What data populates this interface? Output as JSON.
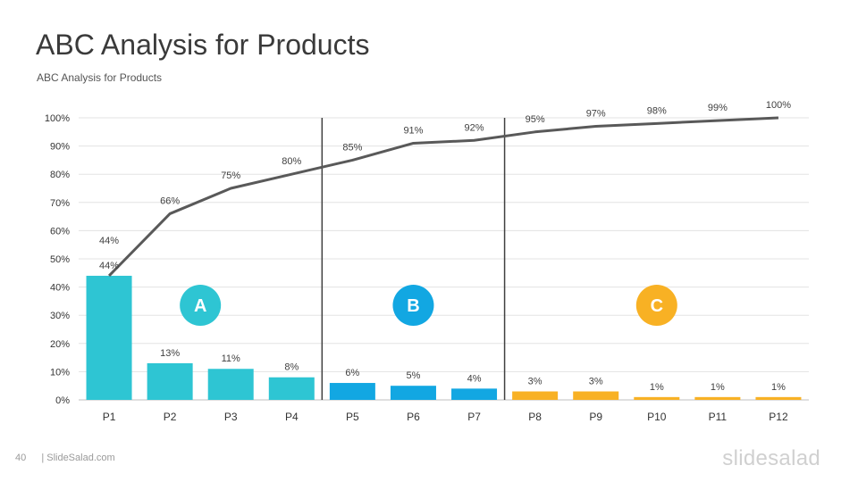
{
  "slide": {
    "title": "ABC Analysis for Products",
    "subtitle": "ABC Analysis for Products",
    "page_number": "40",
    "site": "| SlideSalad.com",
    "logo": "slidesalad"
  },
  "chart_data": {
    "type": "bar",
    "categories": [
      "P1",
      "P2",
      "P3",
      "P4",
      "P5",
      "P6",
      "P7",
      "P8",
      "P9",
      "P10",
      "P11",
      "P12"
    ],
    "series": [
      {
        "kind": "bar",
        "values": [
          44,
          13,
          11,
          8,
          6,
          5,
          4,
          3,
          3,
          1,
          1,
          1
        ],
        "labels": [
          "44%",
          "13%",
          "11%",
          "8%",
          "6%",
          "5%",
          "4%",
          "3%",
          "3%",
          "1%",
          "1%",
          "1%"
        ]
      },
      {
        "kind": "line",
        "values": [
          44,
          66,
          75,
          80,
          85,
          91,
          92,
          95,
          97,
          98,
          99,
          100
        ],
        "labels": [
          "44%",
          "66%",
          "75%",
          "80%",
          "85%",
          "91%",
          "92%",
          "95%",
          "97%",
          "98%",
          "99%",
          "100%"
        ]
      }
    ],
    "ylim": [
      0,
      100
    ],
    "yticks": [
      "0%",
      "10%",
      "20%",
      "30%",
      "40%",
      "50%",
      "60%",
      "70%",
      "80%",
      "90%",
      "100%"
    ],
    "grid": true,
    "groups": [
      {
        "label": "A",
        "from": 0,
        "to": 3,
        "color": "#2ec5d3"
      },
      {
        "label": "B",
        "from": 4,
        "to": 6,
        "color": "#12a7e2"
      },
      {
        "label": "C",
        "from": 7,
        "to": 11,
        "color": "#f8b124"
      }
    ],
    "line_color": "#595959"
  }
}
